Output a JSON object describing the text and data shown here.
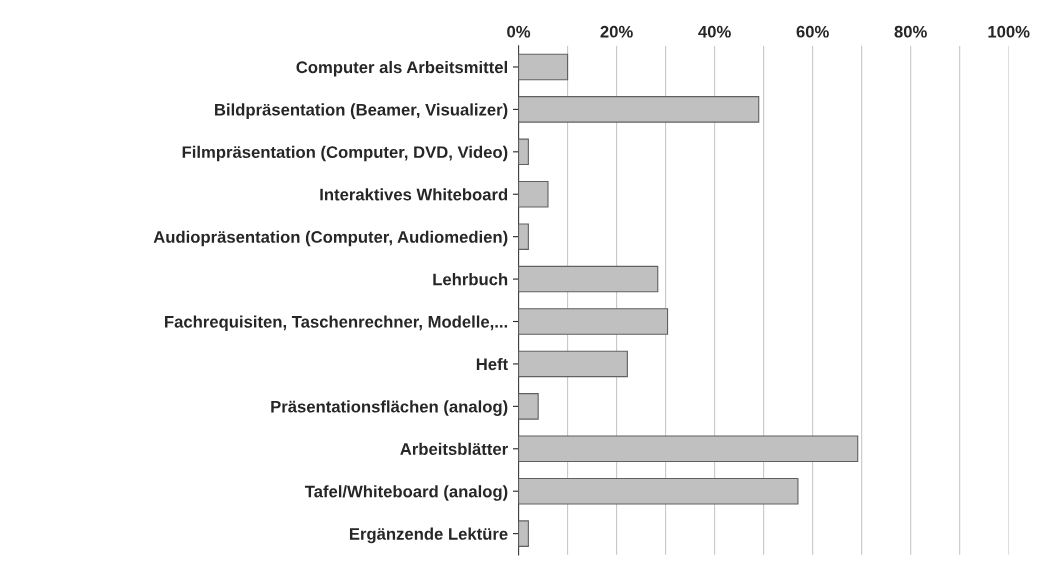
{
  "chart_data": {
    "type": "bar",
    "orientation": "horizontal",
    "categories": [
      "Computer als Arbeitsmittel",
      "Bildpräsentation (Beamer, Visualizer)",
      "Filmpräsentation (Computer, DVD, Video)",
      "Interaktives Whiteboard",
      "Audiopräsentation (Computer, Audiomedien)",
      "Lehrbuch",
      "Fachrequisiten, Taschenrechner, Modelle,...",
      "Heft",
      "Präsentationsflächen (analog)",
      "Arbeitsblätter",
      "Tafel/Whiteboard (analog)",
      "Ergänzende Lektüre"
    ],
    "values": [
      10,
      49,
      2,
      6,
      2,
      28.4,
      30.4,
      22.2,
      4,
      69.2,
      57,
      2
    ],
    "color": "#c0c0c0",
    "xlim": [
      0,
      100
    ],
    "xticks": [
      {
        "value": 0,
        "label": "0%"
      },
      {
        "value": 10,
        "label": null
      },
      {
        "value": 20,
        "label": "20%"
      },
      {
        "value": 30,
        "label": null
      },
      {
        "value": 40,
        "label": "40%"
      },
      {
        "value": 50,
        "label": null
      },
      {
        "value": 60,
        "label": "60%"
      },
      {
        "value": 70,
        "label": null
      },
      {
        "value": 80,
        "label": "80%"
      },
      {
        "value": 90,
        "label": null
      },
      {
        "value": 100,
        "label": "100%"
      }
    ],
    "grid": "x",
    "legend": false
  }
}
